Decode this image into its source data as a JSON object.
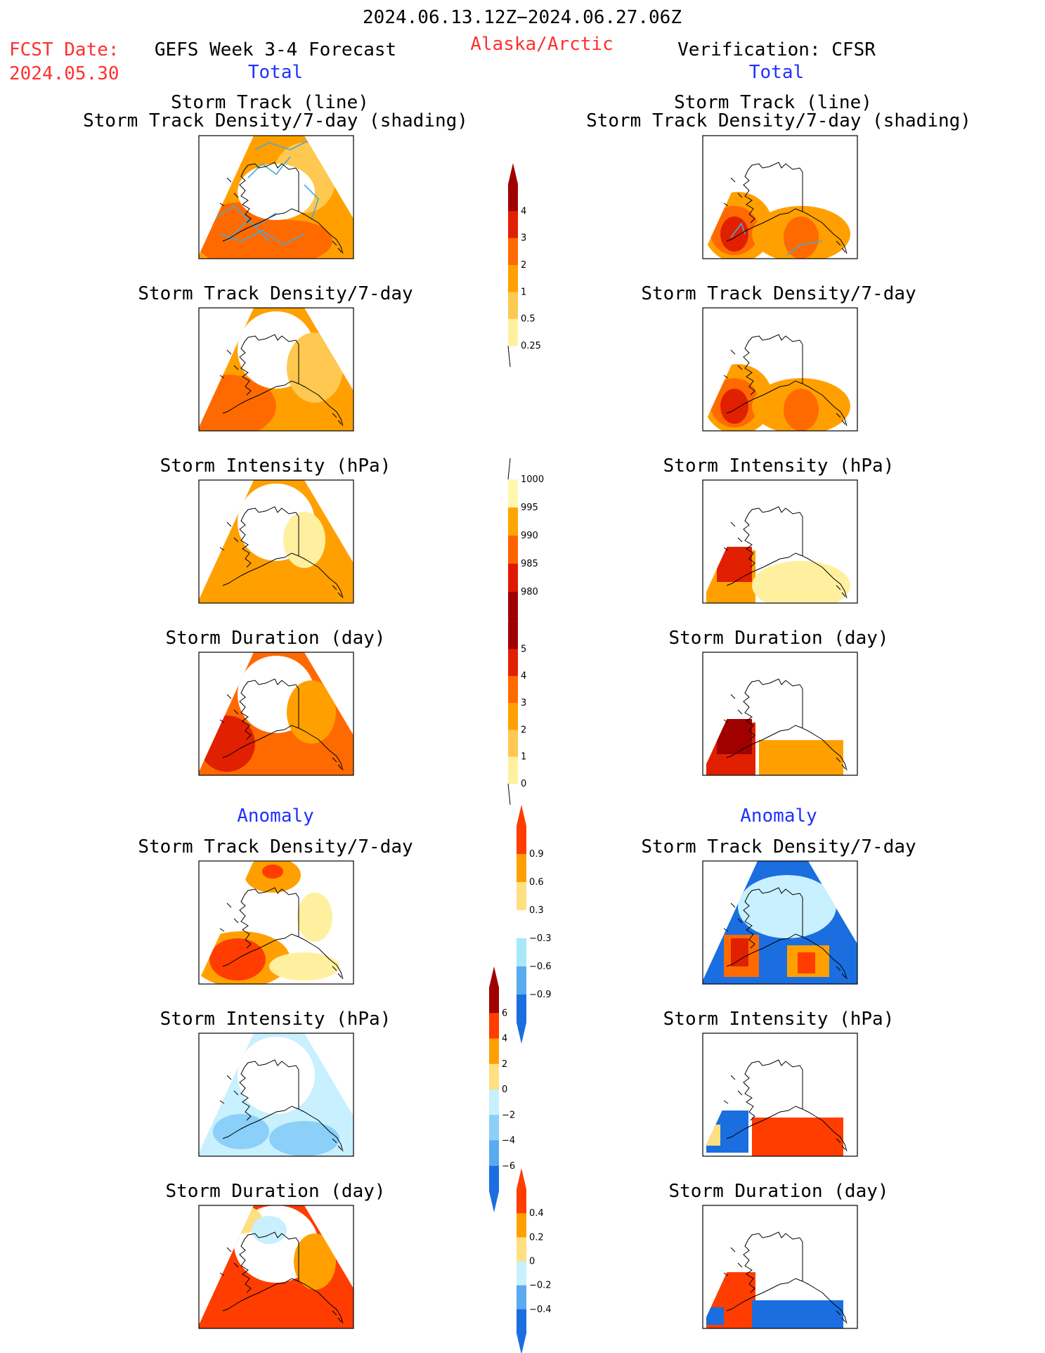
{
  "header": {
    "date_range": "2024.06.13.12Z−2024.06.27.06Z",
    "fcst_label": "FCST Date:",
    "fcst_date": "2024.05.30",
    "model_title": "GEFS Week 3-4 Forecast",
    "region": "Alaska/Arctic",
    "verification": "Verification: CFSR"
  },
  "sections": {
    "total_left": "Total",
    "total_right": "Total",
    "anomaly_left": "Anomaly",
    "anomaly_right": "Anomaly"
  },
  "panel_titles": {
    "track_line": "Storm Track (line)",
    "track_shading": "Storm Track Density/7-day (shading)",
    "density": "Storm Track Density/7-day",
    "intensity": "Storm Intensity (hPa)",
    "duration": "Storm Duration (day)"
  },
  "chart_data": [
    {
      "type": "heatmap",
      "name": "track-density-colorbar",
      "ticks": [
        "4",
        "3",
        "2",
        "1",
        "0.5",
        "0.25"
      ],
      "colors": [
        "#a00000",
        "#e02000",
        "#ff6a00",
        "#ffa000",
        "#ffc850",
        "#fff0a0"
      ]
    },
    {
      "type": "heatmap",
      "name": "intensity-colorbar",
      "ticks": [
        "1000",
        "995",
        "990",
        "985",
        "980"
      ],
      "colors": [
        "#fff6b0",
        "#ffa500",
        "#ff6200",
        "#e01800",
        "#a00000"
      ]
    },
    {
      "type": "heatmap",
      "name": "duration-colorbar",
      "ticks": [
        "5",
        "4",
        "3",
        "2",
        "1",
        "0"
      ],
      "colors": [
        "#a00000",
        "#e02000",
        "#ff6a00",
        "#ffa000",
        "#ffc850",
        "#fff0a0"
      ]
    },
    {
      "type": "heatmap",
      "name": "density-anomaly-colorbar",
      "ticks": [
        "0.9",
        "0.6",
        "0.3",
        "−0.3",
        "−0.6",
        "−0.9"
      ],
      "colors": [
        "#ff3d00",
        "#ffa000",
        "#ffe080",
        "#ffffff",
        "#a8e8f8",
        "#5aaaf0",
        "#1a6ee0"
      ]
    },
    {
      "type": "heatmap",
      "name": "intensity-anomaly-colorbar",
      "ticks": [
        "6",
        "4",
        "2",
        "0",
        "−2",
        "−4",
        "−6"
      ],
      "colors": [
        "#a00000",
        "#ff3d00",
        "#ffa000",
        "#ffe080",
        "#c8f0ff",
        "#8ad0f8",
        "#5aaaf0",
        "#1a6ee0"
      ]
    },
    {
      "type": "heatmap",
      "name": "duration-anomaly-colorbar",
      "ticks": [
        "0.4",
        "0.2",
        "0",
        "−0.2",
        "−0.4"
      ],
      "colors": [
        "#ff3d00",
        "#ffa000",
        "#ffe080",
        "#c8f0ff",
        "#5aaaf0",
        "#1a6ee0"
      ]
    }
  ]
}
